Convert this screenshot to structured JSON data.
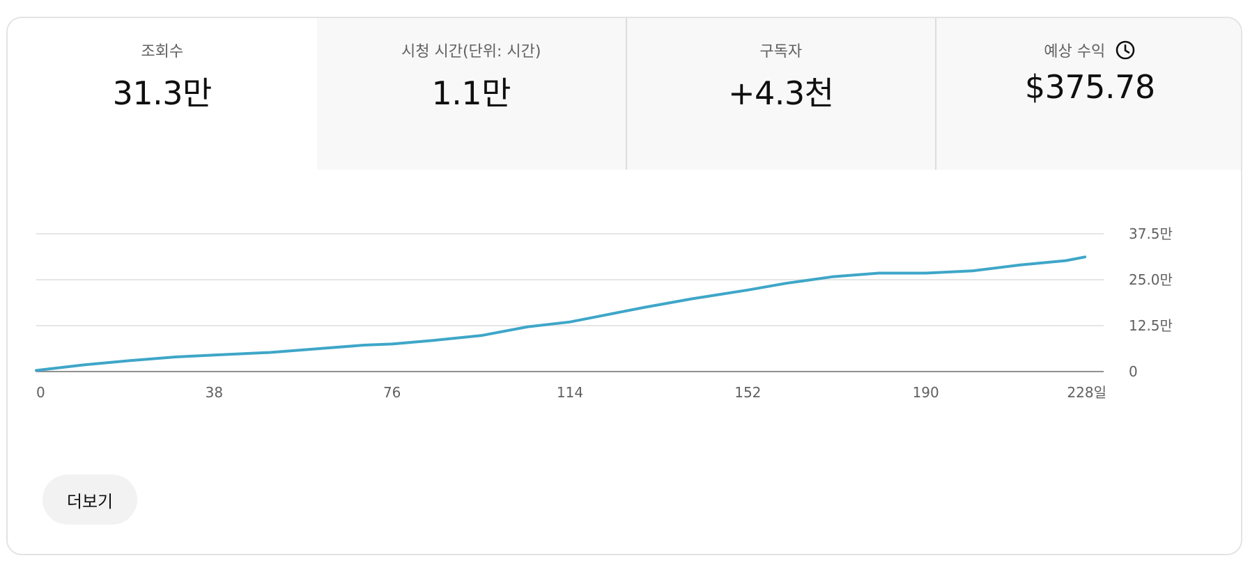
{
  "metrics": {
    "views": {
      "label": "조회수",
      "value": "31.3만"
    },
    "watch_time": {
      "label": "시청 시간(단위: 시간)",
      "value": "1.1만"
    },
    "subscribers": {
      "label": "구독자",
      "value": "+4.3천"
    },
    "revenue": {
      "label": "예상 수익",
      "value": "$375.78",
      "icon": "clock-icon"
    }
  },
  "colors": {
    "line": "#3ea6c8",
    "grid": "#e5e5e5",
    "axis": "#909090",
    "tick_text": "#606060"
  },
  "chart_data": {
    "type": "line",
    "title": "",
    "xlabel": "",
    "ylabel": "",
    "x_ticks": [
      "0",
      "38",
      "76",
      "114",
      "152",
      "190",
      "228일"
    ],
    "y_ticks": [
      "0",
      "12.5만",
      "25.0만",
      "37.5만"
    ],
    "xlim": [
      0,
      228
    ],
    "ylim": [
      0,
      375000
    ],
    "grid": true,
    "series": [
      {
        "x": [
          0,
          10,
          20,
          30,
          38,
          50,
          60,
          70,
          76,
          85,
          95,
          105,
          114,
          120,
          130,
          140,
          152,
          160,
          170,
          180,
          190,
          200,
          210,
          220,
          224
        ],
        "y": [
          3000,
          18000,
          30000,
          40000,
          45000,
          52000,
          62000,
          72000,
          75000,
          85000,
          98000,
          122000,
          135000,
          150000,
          175000,
          198000,
          222000,
          240000,
          258000,
          268000,
          268000,
          274000,
          290000,
          302000,
          312000
        ]
      }
    ]
  },
  "more_button": {
    "label": "더보기"
  }
}
